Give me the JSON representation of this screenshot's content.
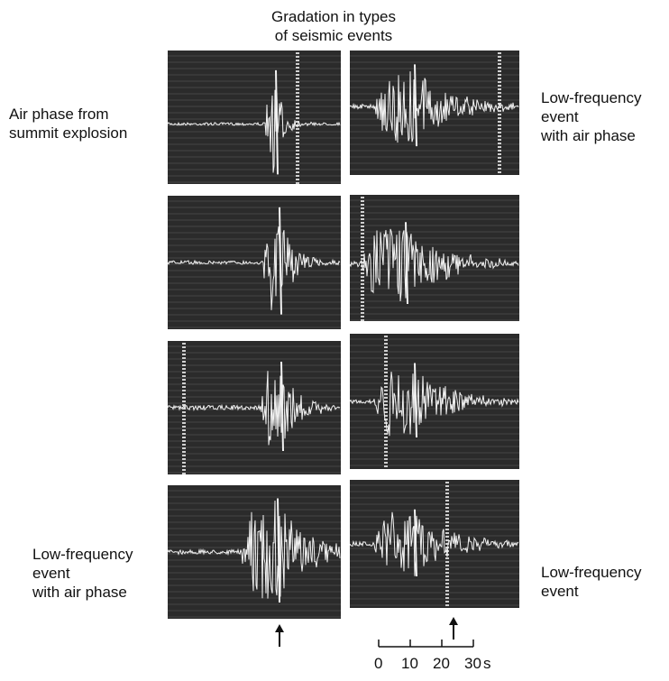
{
  "title": {
    "line1": "Gradation in types",
    "line2": "of seismic events"
  },
  "labels": {
    "top_left": {
      "line1": "Air phase from",
      "line2": "summit explosion"
    },
    "top_right": {
      "line1": "Low-frequency",
      "line2": "event",
      "line3": "with air phase"
    },
    "bottom_left": {
      "line1": "Low-frequency",
      "line2": "event",
      "line3": "with air phase"
    },
    "bottom_right": {
      "line1": "Low-frequency",
      "line2": "event"
    }
  },
  "scale_bar": {
    "ticks": [
      "0",
      "10",
      "20",
      "30"
    ],
    "unit": "s"
  },
  "colors": {
    "panel_background": "#2b2b2b",
    "trace": "#f2f2f2"
  },
  "icons": [
    "up-arrow-icon",
    "up-arrow-icon"
  ]
}
